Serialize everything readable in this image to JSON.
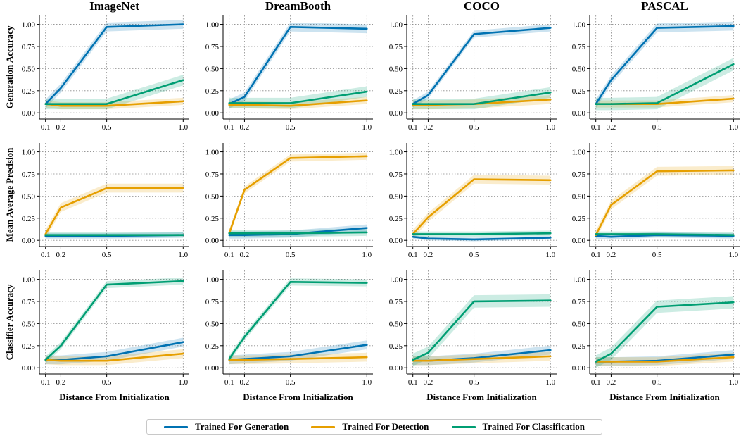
{
  "chart_data": {
    "type": "line",
    "columns": [
      "ImageNet",
      "DreamBooth",
      "COCO",
      "PASCAL"
    ],
    "rows": [
      "Generation Accuracy",
      "Mean Average Precision",
      "Classifier Accuracy"
    ],
    "xlabel": "Distance From Initialization",
    "x": [
      0.1,
      0.2,
      0.5,
      1.0
    ],
    "x_ticks": [
      "0.1",
      "0.2",
      "0.5",
      "1.0"
    ],
    "ylim": [
      -0.07,
      1.1
    ],
    "y_ticks": [
      "0.00",
      "0.25",
      "0.50",
      "0.75",
      "1.00"
    ],
    "grid": "dotted",
    "legend_placement": "bottom-center",
    "series_names": [
      "Trained For Generation",
      "Trained For Detection",
      "Trained For Classification"
    ],
    "series_colors": [
      "#0072B2",
      "#E69F00",
      "#009E73"
    ],
    "panels": [
      {
        "row": 0,
        "col": 0,
        "series": [
          {
            "name": "Trained For Generation",
            "values": [
              0.1,
              0.28,
              0.97,
              1.0
            ],
            "band": 0.05
          },
          {
            "name": "Trained For Detection",
            "values": [
              0.1,
              0.08,
              0.08,
              0.13
            ],
            "band": 0.04
          },
          {
            "name": "Trained For Classification",
            "values": [
              0.1,
              0.1,
              0.1,
              0.37
            ],
            "band": 0.06
          }
        ]
      },
      {
        "row": 0,
        "col": 1,
        "series": [
          {
            "name": "Trained For Generation",
            "values": [
              0.1,
              0.18,
              0.97,
              0.95
            ],
            "band": 0.05
          },
          {
            "name": "Trained For Detection",
            "values": [
              0.09,
              0.09,
              0.08,
              0.14
            ],
            "band": 0.04
          },
          {
            "name": "Trained For Classification",
            "values": [
              0.11,
              0.11,
              0.11,
              0.24
            ],
            "band": 0.06
          }
        ]
      },
      {
        "row": 0,
        "col": 2,
        "series": [
          {
            "name": "Trained For Generation",
            "values": [
              0.1,
              0.2,
              0.89,
              0.96
            ],
            "band": 0.04
          },
          {
            "name": "Trained For Detection",
            "values": [
              0.09,
              0.09,
              0.1,
              0.15
            ],
            "band": 0.05
          },
          {
            "name": "Trained For Classification",
            "values": [
              0.1,
              0.1,
              0.1,
              0.23
            ],
            "band": 0.06
          }
        ]
      },
      {
        "row": 0,
        "col": 3,
        "series": [
          {
            "name": "Trained For Generation",
            "values": [
              0.1,
              0.37,
              0.96,
              0.98
            ],
            "band": 0.05
          },
          {
            "name": "Trained For Detection",
            "values": [
              0.1,
              0.1,
              0.1,
              0.16
            ],
            "band": 0.04
          },
          {
            "name": "Trained For Classification",
            "values": [
              0.1,
              0.1,
              0.11,
              0.55
            ],
            "band": 0.07
          }
        ]
      },
      {
        "row": 1,
        "col": 0,
        "series": [
          {
            "name": "Trained For Generation",
            "values": [
              0.05,
              0.05,
              0.05,
              0.06
            ],
            "band": 0.03
          },
          {
            "name": "Trained For Detection",
            "values": [
              0.07,
              0.37,
              0.59,
              0.59
            ],
            "band": 0.05
          },
          {
            "name": "Trained For Classification",
            "values": [
              0.06,
              0.06,
              0.06,
              0.06
            ],
            "band": 0.03
          }
        ]
      },
      {
        "row": 1,
        "col": 1,
        "series": [
          {
            "name": "Trained For Generation",
            "values": [
              0.06,
              0.06,
              0.07,
              0.14
            ],
            "band": 0.04
          },
          {
            "name": "Trained For Detection",
            "values": [
              0.08,
              0.57,
              0.93,
              0.95
            ],
            "band": 0.04
          },
          {
            "name": "Trained For Classification",
            "values": [
              0.08,
              0.08,
              0.08,
              0.09
            ],
            "band": 0.04
          }
        ]
      },
      {
        "row": 1,
        "col": 2,
        "series": [
          {
            "name": "Trained For Generation",
            "values": [
              0.04,
              0.02,
              0.01,
              0.03
            ],
            "band": 0.02
          },
          {
            "name": "Trained For Detection",
            "values": [
              0.07,
              0.26,
              0.69,
              0.68
            ],
            "band": 0.05
          },
          {
            "name": "Trained For Classification",
            "values": [
              0.07,
              0.07,
              0.07,
              0.08
            ],
            "band": 0.03
          }
        ]
      },
      {
        "row": 1,
        "col": 3,
        "series": [
          {
            "name": "Trained For Generation",
            "values": [
              0.05,
              0.04,
              0.06,
              0.05
            ],
            "band": 0.03
          },
          {
            "name": "Trained For Detection",
            "values": [
              0.06,
              0.4,
              0.78,
              0.79
            ],
            "band": 0.05
          },
          {
            "name": "Trained For Classification",
            "values": [
              0.07,
              0.07,
              0.07,
              0.06
            ],
            "band": 0.03
          }
        ]
      },
      {
        "row": 2,
        "col": 0,
        "series": [
          {
            "name": "Trained For Generation",
            "values": [
              0.09,
              0.09,
              0.13,
              0.29
            ],
            "band": 0.05
          },
          {
            "name": "Trained For Detection",
            "values": [
              0.09,
              0.08,
              0.08,
              0.16
            ],
            "band": 0.05
          },
          {
            "name": "Trained For Classification",
            "values": [
              0.09,
              0.25,
              0.94,
              0.98
            ],
            "band": 0.04
          }
        ]
      },
      {
        "row": 2,
        "col": 1,
        "series": [
          {
            "name": "Trained For Generation",
            "values": [
              0.09,
              0.1,
              0.13,
              0.26
            ],
            "band": 0.05
          },
          {
            "name": "Trained For Detection",
            "values": [
              0.09,
              0.09,
              0.1,
              0.12
            ],
            "band": 0.05
          },
          {
            "name": "Trained For Classification",
            "values": [
              0.1,
              0.35,
              0.97,
              0.96
            ],
            "band": 0.04
          }
        ]
      },
      {
        "row": 2,
        "col": 2,
        "series": [
          {
            "name": "Trained For Generation",
            "values": [
              0.08,
              0.08,
              0.11,
              0.2
            ],
            "band": 0.05
          },
          {
            "name": "Trained For Detection",
            "values": [
              0.08,
              0.08,
              0.1,
              0.13
            ],
            "band": 0.05
          },
          {
            "name": "Trained For Classification",
            "values": [
              0.09,
              0.17,
              0.75,
              0.76
            ],
            "band": 0.07
          }
        ]
      },
      {
        "row": 2,
        "col": 3,
        "series": [
          {
            "name": "Trained For Generation",
            "values": [
              0.07,
              0.07,
              0.08,
              0.15
            ],
            "band": 0.05
          },
          {
            "name": "Trained For Detection",
            "values": [
              0.07,
              0.07,
              0.07,
              0.12
            ],
            "band": 0.05
          },
          {
            "name": "Trained For Classification",
            "values": [
              0.07,
              0.16,
              0.69,
              0.74
            ],
            "band": 0.07
          }
        ]
      }
    ]
  }
}
